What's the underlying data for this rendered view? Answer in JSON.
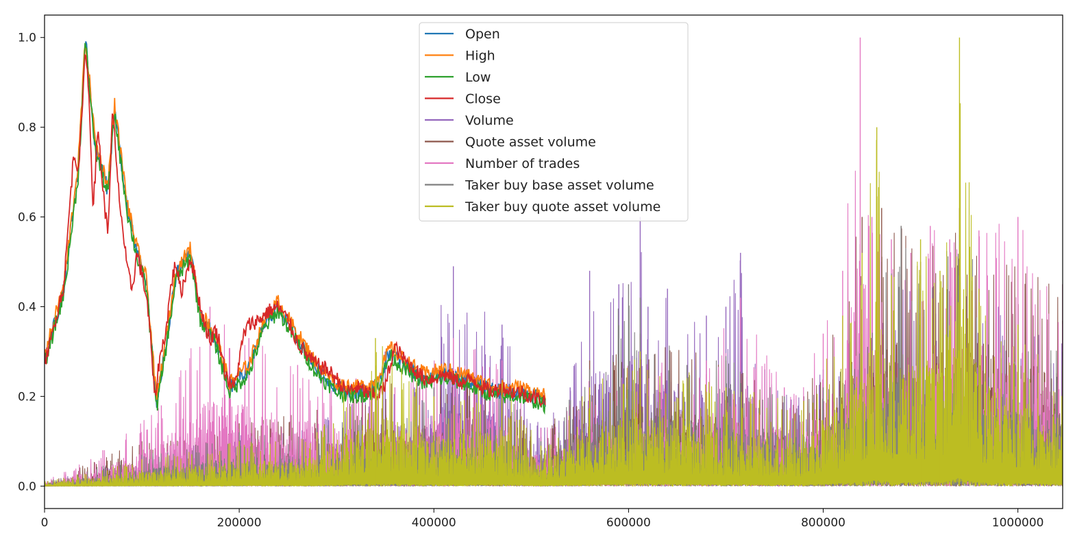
{
  "chart_data": {
    "type": "line",
    "title": "",
    "xlabel": "",
    "ylabel": "",
    "xlim": [
      0,
      1046000
    ],
    "ylim": [
      -0.05,
      1.05
    ],
    "legend_position": "top-center",
    "grid": false,
    "x_ticks": [
      {
        "value": 0,
        "label": "0"
      },
      {
        "value": 200000,
        "label": "200000"
      },
      {
        "value": 400000,
        "label": "400000"
      },
      {
        "value": 600000,
        "label": "600000"
      },
      {
        "value": 800000,
        "label": "800000"
      },
      {
        "value": 1000000,
        "label": "1000000"
      }
    ],
    "y_ticks": [
      {
        "value": 0.0,
        "label": "0.0"
      },
      {
        "value": 0.2,
        "label": "0.2"
      },
      {
        "value": 0.4,
        "label": "0.4"
      },
      {
        "value": 0.6,
        "label": "0.6"
      },
      {
        "value": 0.8,
        "label": "0.8"
      },
      {
        "value": 1.0,
        "label": "1.0"
      }
    ],
    "series": [
      {
        "name": "Open",
        "color": "#1f77b4",
        "kind": "price",
        "x": [
          0,
          20000,
          35000,
          42000,
          52000,
          65000,
          72000,
          85000,
          95000,
          105000,
          115000,
          125000,
          135000,
          150000,
          160000,
          175000,
          190000,
          210000,
          225000,
          240000,
          260000,
          280000,
          300000,
          320000,
          340000,
          355000,
          370000,
          390000,
          410000,
          430000,
          450000,
          470000,
          490000,
          515000
        ],
        "y": [
          0.28,
          0.44,
          0.72,
          1.0,
          0.76,
          0.66,
          0.84,
          0.62,
          0.52,
          0.45,
          0.18,
          0.32,
          0.47,
          0.52,
          0.38,
          0.33,
          0.22,
          0.26,
          0.36,
          0.4,
          0.33,
          0.26,
          0.22,
          0.21,
          0.22,
          0.3,
          0.27,
          0.24,
          0.25,
          0.24,
          0.22,
          0.21,
          0.21,
          0.19
        ]
      },
      {
        "name": "High",
        "color": "#ff7f0e",
        "kind": "price",
        "x": [
          0,
          20000,
          35000,
          42000,
          52000,
          65000,
          72000,
          85000,
          95000,
          105000,
          115000,
          125000,
          135000,
          150000,
          160000,
          175000,
          190000,
          210000,
          225000,
          240000,
          260000,
          280000,
          300000,
          320000,
          340000,
          355000,
          370000,
          390000,
          410000,
          430000,
          450000,
          470000,
          490000,
          515000
        ],
        "y": [
          0.29,
          0.45,
          0.73,
          1.0,
          0.77,
          0.67,
          0.85,
          0.63,
          0.53,
          0.46,
          0.19,
          0.33,
          0.48,
          0.53,
          0.39,
          0.34,
          0.23,
          0.27,
          0.37,
          0.41,
          0.34,
          0.27,
          0.23,
          0.22,
          0.23,
          0.31,
          0.28,
          0.25,
          0.26,
          0.25,
          0.23,
          0.22,
          0.22,
          0.2
        ]
      },
      {
        "name": "Low",
        "color": "#2ca02c",
        "kind": "price",
        "x": [
          0,
          20000,
          35000,
          42000,
          52000,
          65000,
          72000,
          85000,
          95000,
          105000,
          115000,
          125000,
          135000,
          150000,
          160000,
          175000,
          190000,
          210000,
          225000,
          240000,
          260000,
          280000,
          300000,
          320000,
          340000,
          355000,
          370000,
          390000,
          410000,
          430000,
          450000,
          470000,
          490000,
          515000
        ],
        "y": [
          0.27,
          0.43,
          0.7,
          0.99,
          0.75,
          0.65,
          0.83,
          0.61,
          0.51,
          0.44,
          0.17,
          0.31,
          0.46,
          0.51,
          0.37,
          0.32,
          0.21,
          0.25,
          0.35,
          0.39,
          0.32,
          0.25,
          0.21,
          0.2,
          0.21,
          0.29,
          0.26,
          0.23,
          0.24,
          0.23,
          0.21,
          0.2,
          0.2,
          0.18
        ]
      },
      {
        "name": "Close",
        "color": "#d62728",
        "kind": "price",
        "x": [
          0,
          5000,
          12000,
          20000,
          25000,
          30000,
          35000,
          40000,
          42000,
          46000,
          50000,
          55000,
          60000,
          65000,
          70000,
          75000,
          80000,
          85000,
          90000,
          95000,
          100000,
          105000,
          110000,
          113000,
          118000,
          125000,
          130000,
          135000,
          140000,
          145000,
          150000,
          155000,
          160000,
          165000,
          170000,
          175000,
          180000,
          185000,
          190000,
          195000,
          200000,
          205000,
          210000,
          220000,
          230000,
          240000,
          250000,
          260000,
          270000,
          280000,
          290000,
          300000,
          310000,
          320000,
          330000,
          340000,
          350000,
          355000,
          360000,
          370000,
          380000,
          390000,
          400000,
          410000,
          420000,
          430000,
          440000,
          450000,
          460000,
          470000,
          480000,
          490000,
          500000,
          515000
        ],
        "y": [
          0.28,
          0.31,
          0.38,
          0.45,
          0.6,
          0.74,
          0.71,
          0.88,
          0.99,
          0.85,
          0.62,
          0.8,
          0.66,
          0.56,
          0.84,
          0.68,
          0.58,
          0.48,
          0.44,
          0.52,
          0.47,
          0.42,
          0.3,
          0.19,
          0.28,
          0.35,
          0.45,
          0.5,
          0.43,
          0.47,
          0.51,
          0.46,
          0.4,
          0.36,
          0.32,
          0.35,
          0.32,
          0.26,
          0.23,
          0.22,
          0.28,
          0.34,
          0.36,
          0.37,
          0.39,
          0.4,
          0.37,
          0.32,
          0.29,
          0.27,
          0.26,
          0.24,
          0.21,
          0.22,
          0.21,
          0.2,
          0.22,
          0.27,
          0.31,
          0.28,
          0.26,
          0.24,
          0.24,
          0.25,
          0.24,
          0.23,
          0.24,
          0.22,
          0.21,
          0.22,
          0.21,
          0.21,
          0.2,
          0.19
        ]
      },
      {
        "name": "Volume",
        "color": "#9467bd",
        "kind": "spiky",
        "x": [
          0,
          100000,
          200000,
          280000,
          340000,
          350000,
          380000,
          420000,
          470000,
          510000,
          540000,
          560000,
          590000,
          612000,
          620000,
          640000,
          680000,
          700000,
          715000,
          740000,
          780000,
          800000,
          840000,
          860000,
          880000,
          900000,
          940000,
          980000,
          1046000
        ],
        "y": [
          0.01,
          0.06,
          0.12,
          0.15,
          0.22,
          0.3,
          0.22,
          0.49,
          0.36,
          0.13,
          0.22,
          0.48,
          0.45,
          0.6,
          0.4,
          0.44,
          0.38,
          0.4,
          0.52,
          0.26,
          0.2,
          0.26,
          0.42,
          0.5,
          0.46,
          0.44,
          0.48,
          0.4,
          0.33
        ]
      },
      {
        "name": "Quote asset volume",
        "color": "#8c564b",
        "kind": "spiky",
        "x": [
          0,
          100000,
          200000,
          280000,
          340000,
          420000,
          470000,
          510000,
          560000,
          612000,
          700000,
          780000,
          840000,
          860000,
          880000,
          900000,
          940000,
          1046000
        ],
        "y": [
          0.01,
          0.1,
          0.14,
          0.17,
          0.22,
          0.28,
          0.22,
          0.11,
          0.28,
          0.34,
          0.28,
          0.2,
          0.6,
          0.62,
          0.58,
          0.5,
          0.62,
          0.45
        ]
      },
      {
        "name": "Number of trades",
        "color": "#e377c2",
        "kind": "spiky",
        "x": [
          0,
          60000,
          120000,
          170000,
          210000,
          260000,
          320000,
          360000,
          420000,
          470000,
          510000,
          560000,
          612000,
          680000,
          715000,
          760000,
          800000,
          820000,
          838000,
          850000,
          870000,
          890000,
          910000,
          930000,
          960000,
          1000000,
          1046000
        ],
        "y": [
          0.01,
          0.08,
          0.18,
          0.4,
          0.33,
          0.27,
          0.24,
          0.22,
          0.33,
          0.28,
          0.13,
          0.24,
          0.28,
          0.28,
          0.42,
          0.22,
          0.34,
          0.48,
          1.0,
          0.6,
          0.55,
          0.52,
          0.58,
          0.55,
          0.57,
          0.6,
          0.45
        ]
      },
      {
        "name": "Taker buy base asset volume",
        "color": "#7f7f7f",
        "kind": "spiky",
        "x": [
          0,
          100000,
          200000,
          280000,
          340000,
          400000,
          470000,
          510000,
          560000,
          600000,
          612000,
          660000,
          700000,
          760000,
          800000,
          840000,
          880000,
          900000,
          940000,
          1000000,
          1046000
        ],
        "y": [
          0.01,
          0.07,
          0.12,
          0.13,
          0.17,
          0.22,
          0.24,
          0.1,
          0.26,
          0.45,
          0.42,
          0.27,
          0.29,
          0.2,
          0.22,
          0.34,
          0.58,
          0.47,
          0.56,
          0.33,
          0.3
        ]
      },
      {
        "name": "Taker buy quote asset volume",
        "color": "#bcbd22",
        "kind": "spiky",
        "x": [
          0,
          100000,
          200000,
          280000,
          340000,
          400000,
          470000,
          510000,
          560000,
          612000,
          700000,
          780000,
          820000,
          840000,
          855000,
          870000,
          900000,
          920000,
          940000,
          960000,
          1000000,
          1046000
        ],
        "y": [
          0.01,
          0.06,
          0.1,
          0.12,
          0.33,
          0.2,
          0.23,
          0.09,
          0.22,
          0.3,
          0.22,
          0.19,
          0.38,
          0.52,
          0.8,
          0.47,
          0.55,
          0.48,
          1.0,
          0.44,
          0.36,
          0.27
        ]
      }
    ]
  }
}
